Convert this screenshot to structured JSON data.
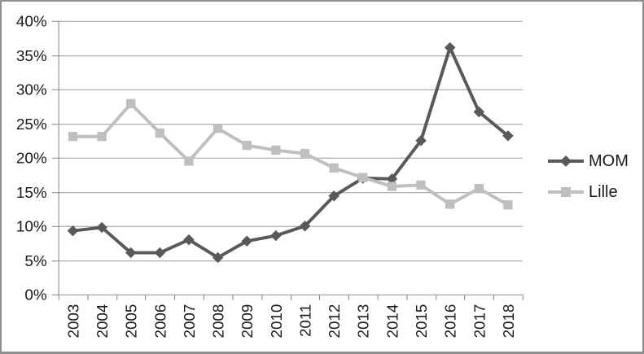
{
  "chart_data": {
    "type": "line",
    "title": "",
    "xlabel": "",
    "ylabel": "",
    "x": [
      "2003",
      "2004",
      "2005",
      "2006",
      "2007",
      "2008",
      "2009",
      "2010",
      "2011",
      "2012",
      "2013",
      "2014",
      "2015",
      "2016",
      "2017",
      "2018"
    ],
    "y_ticks": [
      "0%",
      "5%",
      "10%",
      "15%",
      "20%",
      "25%",
      "30%",
      "35%",
      "40%"
    ],
    "ylim": [
      0,
      40
    ],
    "y_step": 5,
    "grid": true,
    "legend_position": "right",
    "series": [
      {
        "name": "MOM",
        "marker": "diamond",
        "color": "#595959",
        "values": [
          9.3,
          9.8,
          6.1,
          6.1,
          8.0,
          5.4,
          7.8,
          8.6,
          10.0,
          14.4,
          17.0,
          16.9,
          22.5,
          36.1,
          26.7,
          23.2
        ]
      },
      {
        "name": "Lille",
        "marker": "square",
        "color": "#bfbfbf",
        "values": [
          23.1,
          23.1,
          27.9,
          23.6,
          19.5,
          24.3,
          21.8,
          21.1,
          20.6,
          18.5,
          17.1,
          15.8,
          16.0,
          13.2,
          15.5,
          13.1
        ]
      }
    ],
    "grid_color": "#999999",
    "axis_color": "#808080",
    "text_color": "#1a1a1a",
    "frame_border_color": "#8f8f8f",
    "background_color": "#ffffff"
  }
}
